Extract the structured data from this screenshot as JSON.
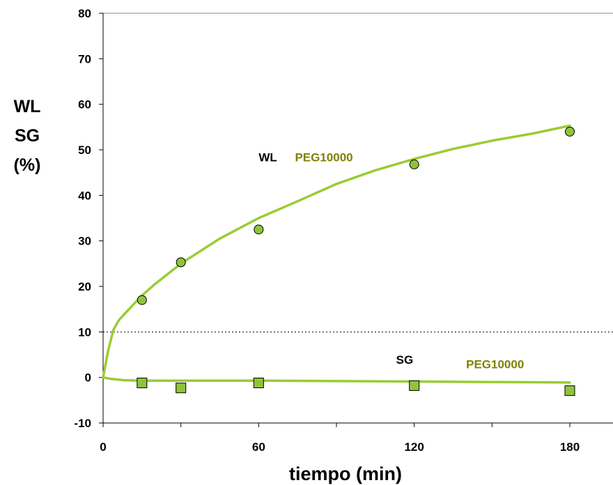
{
  "chart_data": {
    "type": "scatter",
    "xlabel": "tiempo (min)",
    "ylabel_lines": [
      "WL",
      "SG",
      "(%)"
    ],
    "xlim": [
      0,
      198
    ],
    "ylim": [
      -10,
      80
    ],
    "x_ticks": [
      0,
      60,
      120,
      180
    ],
    "x_minor_ticks": [
      30,
      90,
      150
    ],
    "y_ticks": [
      -10,
      0,
      10,
      20,
      30,
      40,
      50,
      60,
      70,
      80
    ],
    "reference_lines": [
      {
        "y": 10,
        "style": "dotted"
      },
      {
        "y": 80,
        "style": "thin"
      }
    ],
    "colors": {
      "fit_line": "#99cc33",
      "marker_fill": "#8fc43a",
      "marker_edge": "#000000",
      "peg_label": "#808000",
      "axis": "#000000"
    },
    "series": [
      {
        "name": "WL",
        "marker": "circle",
        "x": [
          15,
          30,
          60,
          120,
          180
        ],
        "y": [
          17,
          25.3,
          32.5,
          46.8,
          54
        ]
      },
      {
        "name": "SG",
        "marker": "square",
        "x": [
          15,
          30,
          60,
          120,
          180
        ],
        "y": [
          -1.2,
          -2.3,
          -1.2,
          -1.8,
          -2.9
        ]
      }
    ],
    "fits": [
      {
        "for": "WL",
        "x": [
          0,
          1,
          2,
          4,
          6,
          8,
          10,
          15,
          20,
          30,
          45,
          60,
          75,
          90,
          105,
          120,
          135,
          150,
          165,
          180
        ],
        "y": [
          0,
          3,
          6,
          10.5,
          12.5,
          13.8,
          15,
          18,
          20.5,
          25,
          30.5,
          35,
          38.7,
          42.5,
          45.5,
          48,
          50.2,
          52,
          53.5,
          55.3
        ]
      },
      {
        "for": "SG",
        "x": [
          0,
          3,
          8,
          15,
          30,
          60,
          90,
          120,
          150,
          180
        ],
        "y": [
          0,
          -0.3,
          -0.6,
          -0.7,
          -0.7,
          -0.7,
          -0.8,
          -0.9,
          -1.0,
          -1.1
        ]
      }
    ],
    "annotations": [
      {
        "text": "WL",
        "x": 60,
        "y": 47.5,
        "color": "#000000"
      },
      {
        "text": "PEG10000",
        "x": 74,
        "y": 47.5,
        "color": "#808000"
      },
      {
        "text": "SG",
        "x": 113,
        "y": 3,
        "color": "#000000"
      },
      {
        "text": "PEG10000",
        "x": 140,
        "y": 2,
        "color": "#808000"
      }
    ]
  }
}
